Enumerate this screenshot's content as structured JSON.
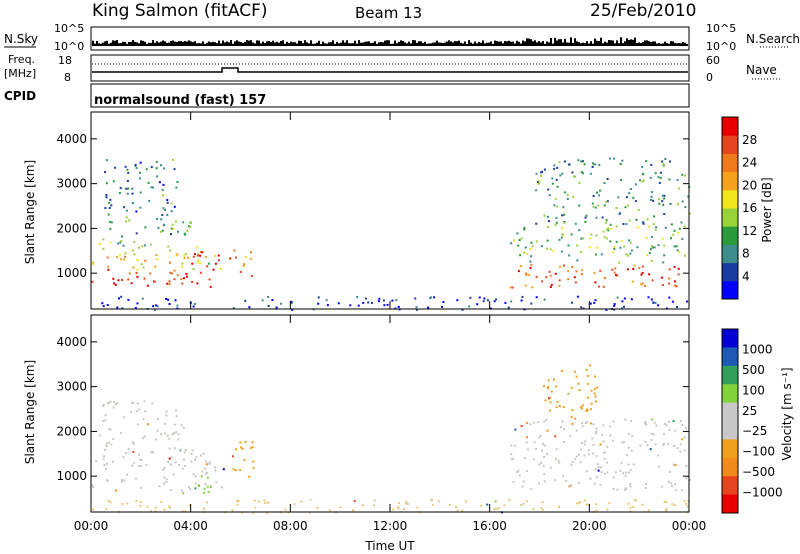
{
  "header": {
    "station": "King Salmon (fitACF)",
    "beam": "Beam 13",
    "date": "25/Feb/2010"
  },
  "top_panels": {
    "nsky_label": "N.Sky",
    "nsky_ticks": [
      "10^5",
      "10^0"
    ],
    "nsearch_label": "N.Search",
    "nsearch_ticks": [
      "10^5",
      "10^0"
    ],
    "freq_label": "Freq.",
    "freq_unit": "[MHz]",
    "freq_ticks": [
      "18",
      "8"
    ],
    "nave_label": "Nave",
    "nave_ticks": [
      "60",
      "0"
    ],
    "cpid_label": "CPID",
    "cpid_value": "normalsound (fast) 157"
  },
  "chart_data": [
    {
      "type": "heatmap",
      "panel": "power",
      "ylabel": "Slant Range [km]",
      "y_ticks": [
        "1000",
        "2000",
        "3000",
        "4000"
      ],
      "y_tick_values": [
        1000,
        2000,
        3000,
        4000
      ],
      "ylim": [
        200,
        4600
      ],
      "xlim": [
        0,
        24
      ],
      "colorbar": {
        "label": "Power [dB]",
        "ticks": [
          "4",
          "8",
          "12",
          "16",
          "20",
          "24",
          "28"
        ],
        "colors": [
          "#0000ff",
          "#1a3ca0",
          "#3c8c8c",
          "#2a9a3a",
          "#9ad23a",
          "#f0e61e",
          "#f7a21e",
          "#ef7a1e",
          "#e6461e",
          "#e60000"
        ]
      },
      "regions": [
        {
          "t0": 0.0,
          "t1": 3.8,
          "r0": 700,
          "r1": 1150,
          "level": 0.88
        },
        {
          "t0": 0.0,
          "t1": 5.3,
          "r0": 1100,
          "r1": 1600,
          "level": 0.55
        },
        {
          "t0": 0.3,
          "t1": 4.0,
          "r0": 1600,
          "r1": 2300,
          "level": 0.35
        },
        {
          "t0": 0.5,
          "t1": 3.5,
          "r0": 2300,
          "r1": 3600,
          "level": 0.25
        },
        {
          "t0": 3.8,
          "t1": 5.1,
          "r0": 700,
          "r1": 1500,
          "level": 0.92
        },
        {
          "t0": 5.4,
          "t1": 6.5,
          "r0": 950,
          "r1": 1550,
          "level": 0.7
        },
        {
          "t0": 16.8,
          "t1": 24.0,
          "r0": 700,
          "r1": 1250,
          "level": 0.82
        },
        {
          "t0": 16.8,
          "t1": 24.0,
          "r0": 1250,
          "r1": 2100,
          "level": 0.4
        },
        {
          "t0": 17.8,
          "t1": 24.0,
          "r0": 2100,
          "r1": 3600,
          "level": 0.3
        },
        {
          "t0": 0.0,
          "t1": 24.0,
          "r0": 200,
          "r1": 500,
          "level": 0.1
        }
      ]
    },
    {
      "type": "heatmap",
      "panel": "velocity",
      "ylabel": "Slant Range [km]",
      "y_ticks": [
        "1000",
        "2000",
        "3000",
        "4000"
      ],
      "y_tick_values": [
        1000,
        2000,
        3000,
        4000
      ],
      "ylim": [
        200,
        4600
      ],
      "xlim": [
        0,
        24
      ],
      "colorbar": {
        "label": "Velocity [m s⁻¹]",
        "ticks": [
          "1000",
          "500",
          "100",
          "25",
          "−25",
          "−100",
          "−500",
          "−1000"
        ],
        "colors": [
          "#0000d2",
          "#1e5ab4",
          "#32a05a",
          "#82d23c",
          "#c8c8c8",
          "#c8c8c8",
          "#f0a01e",
          "#f08c1e",
          "#e6461e",
          "#e60000"
        ]
      },
      "regions": [
        {
          "t0": 0.0,
          "t1": 5.3,
          "r0": 700,
          "r1": 1600,
          "color": "#c8c8c0"
        },
        {
          "t0": 0.3,
          "t1": 3.8,
          "r0": 1600,
          "r1": 2700,
          "color": "#c8c8c0"
        },
        {
          "t0": 5.4,
          "t1": 6.5,
          "r0": 950,
          "r1": 1800,
          "color": "#f0a01e"
        },
        {
          "t0": 3.5,
          "t1": 4.8,
          "r0": 600,
          "r1": 1050,
          "color": "#82d23c"
        },
        {
          "t0": 16.8,
          "t1": 24.0,
          "r0": 700,
          "r1": 2300,
          "color": "#c8c8c0"
        },
        {
          "t0": 18.0,
          "t1": 20.3,
          "r0": 2300,
          "r1": 3500,
          "color": "#f0a01e"
        },
        {
          "t0": 0.0,
          "t1": 24.0,
          "r0": 200,
          "r1": 500,
          "color": "#e8c878"
        }
      ],
      "xlabel": "Time UT",
      "x_ticks": [
        "00:00",
        "04:00",
        "08:00",
        "12:00",
        "16:00",
        "20:00",
        "00:00"
      ],
      "x_tick_values": [
        0,
        4,
        8,
        12,
        16,
        20,
        24
      ]
    }
  ]
}
